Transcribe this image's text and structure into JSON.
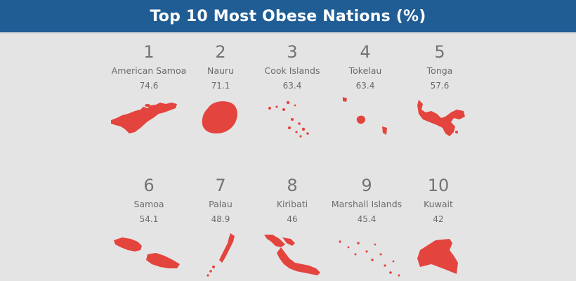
{
  "title": "Top 10 Most Obese Nations (%)",
  "colors": {
    "header": "#1f5d94",
    "shape": "#e3443d",
    "background": "#e4e4e4",
    "text": "#6b6b6b"
  },
  "chart_data": {
    "type": "table",
    "title": "Top 10 Most Obese Nations (%)",
    "columns": [
      "rank",
      "country",
      "value"
    ],
    "rows": [
      {
        "rank": "1",
        "country": "American Samoa",
        "value": "74.6"
      },
      {
        "rank": "2",
        "country": "Nauru",
        "value": "71.1"
      },
      {
        "rank": "3",
        "country": "Cook Islands",
        "value": "63.4"
      },
      {
        "rank": "4",
        "country": "Tokelau",
        "value": "63.4"
      },
      {
        "rank": "5",
        "country": "Tonga",
        "value": "57.6"
      },
      {
        "rank": "6",
        "country": "Samoa",
        "value": "54.1"
      },
      {
        "rank": "7",
        "country": "Palau",
        "value": "48.9"
      },
      {
        "rank": "8",
        "country": "Kiribati",
        "value": "46"
      },
      {
        "rank": "9",
        "country": "Marshall Islands",
        "value": "45.4"
      },
      {
        "rank": "10",
        "country": "Kuwait",
        "value": "42"
      }
    ]
  }
}
